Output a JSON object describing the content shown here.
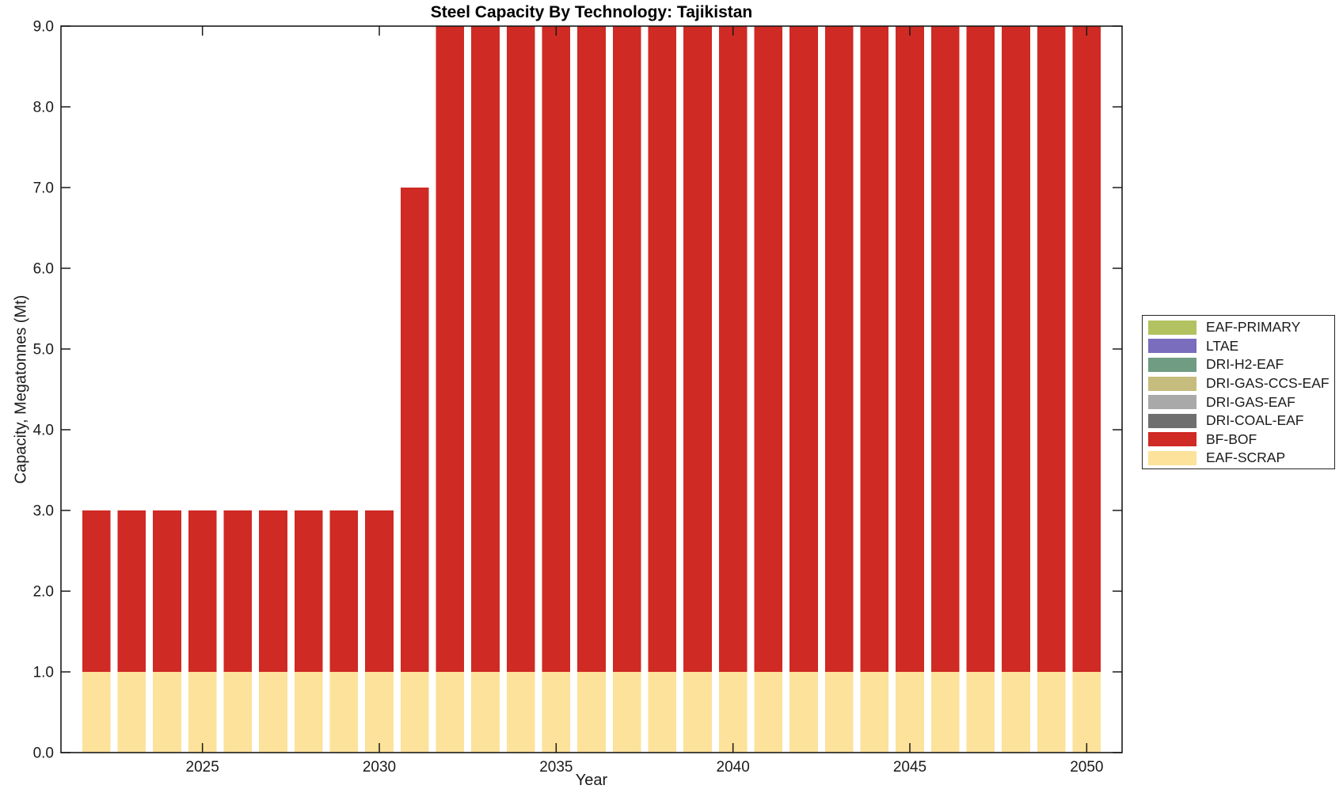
{
  "chart_data": {
    "type": "bar",
    "stacked": true,
    "title": "Steel Capacity By Technology: Tajikistan",
    "xlabel": "Year",
    "ylabel": "Capacity, Megatonnes (Mt)",
    "xlim": [
      2021,
      2051
    ],
    "ylim": [
      0,
      9
    ],
    "bar_width": 0.8,
    "grid": false,
    "legend_position": "right-outside",
    "xticks": [
      2025,
      2030,
      2035,
      2040,
      2045,
      2050
    ],
    "yticks": [
      0,
      1,
      2,
      3,
      4,
      5,
      6,
      7,
      8,
      9
    ],
    "ytick_labels": [
      "0.0",
      "1.0",
      "2.0",
      "3.0",
      "4.0",
      "5.0",
      "6.0",
      "7.0",
      "8.0",
      "9.0"
    ],
    "x": [
      2022,
      2023,
      2024,
      2025,
      2026,
      2027,
      2028,
      2029,
      2030,
      2031,
      2032,
      2033,
      2034,
      2035,
      2036,
      2037,
      2038,
      2039,
      2040,
      2041,
      2042,
      2043,
      2044,
      2045,
      2046,
      2047,
      2048,
      2049,
      2050
    ],
    "series": [
      {
        "name": "EAF-SCRAP",
        "color": "#fce29a",
        "values": [
          1,
          1,
          1,
          1,
          1,
          1,
          1,
          1,
          1,
          1,
          1,
          1,
          1,
          1,
          1,
          1,
          1,
          1,
          1,
          1,
          1,
          1,
          1,
          1,
          1,
          1,
          1,
          1,
          1
        ]
      },
      {
        "name": "BF-BOF",
        "color": "#cf2a24",
        "values": [
          2,
          2,
          2,
          2,
          2,
          2,
          2,
          2,
          2,
          6,
          8,
          8,
          8,
          8,
          8,
          8,
          8,
          8,
          8,
          8,
          8,
          8,
          8,
          8,
          8,
          8,
          8,
          8,
          8
        ]
      },
      {
        "name": "DRI-COAL-EAF",
        "color": "#6f6f6f",
        "values": [
          0,
          0,
          0,
          0,
          0,
          0,
          0,
          0,
          0,
          0,
          0,
          0,
          0,
          0,
          0,
          0,
          0,
          0,
          0,
          0,
          0,
          0,
          0,
          0,
          0,
          0,
          0,
          0,
          0
        ]
      },
      {
        "name": "DRI-GAS-EAF",
        "color": "#a9a9a9",
        "values": [
          0,
          0,
          0,
          0,
          0,
          0,
          0,
          0,
          0,
          0,
          0,
          0,
          0,
          0,
          0,
          0,
          0,
          0,
          0,
          0,
          0,
          0,
          0,
          0,
          0,
          0,
          0,
          0,
          0
        ]
      },
      {
        "name": "DRI-GAS-CCS-EAF",
        "color": "#c6bc7d",
        "values": [
          0,
          0,
          0,
          0,
          0,
          0,
          0,
          0,
          0,
          0,
          0,
          0,
          0,
          0,
          0,
          0,
          0,
          0,
          0,
          0,
          0,
          0,
          0,
          0,
          0,
          0,
          0,
          0,
          0
        ]
      },
      {
        "name": "DRI-H2-EAF",
        "color": "#6f9c82",
        "values": [
          0,
          0,
          0,
          0,
          0,
          0,
          0,
          0,
          0,
          0,
          0,
          0,
          0,
          0,
          0,
          0,
          0,
          0,
          0,
          0,
          0,
          0,
          0,
          0,
          0,
          0,
          0,
          0,
          0
        ]
      },
      {
        "name": "LTAE",
        "color": "#7a6dbd",
        "values": [
          0,
          0,
          0,
          0,
          0,
          0,
          0,
          0,
          0,
          0,
          0,
          0,
          0,
          0,
          0,
          0,
          0,
          0,
          0,
          0,
          0,
          0,
          0,
          0,
          0,
          0,
          0,
          0,
          0
        ]
      },
      {
        "name": "EAF-PRIMARY",
        "color": "#b3c261",
        "values": [
          0,
          0,
          0,
          0,
          0,
          0,
          0,
          0,
          0,
          0,
          0,
          0,
          0,
          0,
          0,
          0,
          0,
          0,
          0,
          0,
          0,
          0,
          0,
          0,
          0,
          0,
          0,
          0,
          0
        ]
      }
    ],
    "legend": [
      {
        "label": "EAF-PRIMARY",
        "color": "#b3c261"
      },
      {
        "label": "LTAE",
        "color": "#7a6dbd"
      },
      {
        "label": "DRI-H2-EAF",
        "color": "#6f9c82"
      },
      {
        "label": "DRI-GAS-CCS-EAF",
        "color": "#c6bc7d"
      },
      {
        "label": "DRI-GAS-EAF",
        "color": "#a9a9a9"
      },
      {
        "label": "DRI-COAL-EAF",
        "color": "#6f6f6f"
      },
      {
        "label": "BF-BOF",
        "color": "#cf2a24"
      },
      {
        "label": "EAF-SCRAP",
        "color": "#fce29a"
      }
    ],
    "axis_color": "#1a1a1a"
  }
}
